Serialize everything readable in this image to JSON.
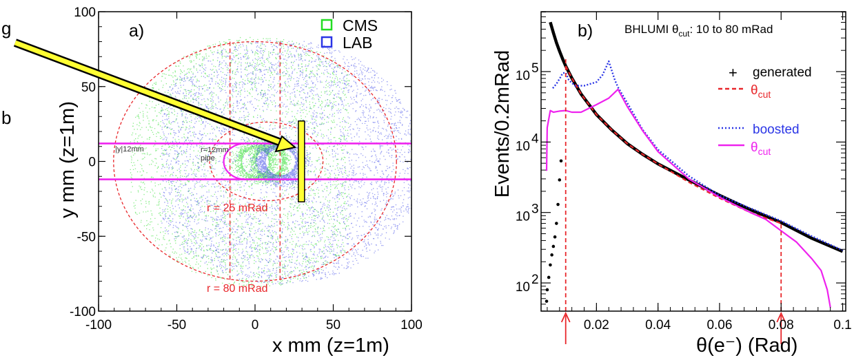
{
  "colors": {
    "cms": "#22dd22",
    "lab": "#2a35e6",
    "magenta": "#ee22ee",
    "red": "#e8262a",
    "arrow": "#ffff33",
    "black": "#000000"
  },
  "side_text": {
    "top": "g",
    "mid": "b"
  },
  "chart_data": [
    {
      "panel": "a)",
      "type": "scatter",
      "xlabel": "x mm (z=1m)",
      "ylabel": "y mm (z=1m)",
      "xlim": [
        -100,
        100
      ],
      "ylim": [
        -100,
        100
      ],
      "xticks": [
        -100,
        -50,
        0,
        50,
        100
      ],
      "yticks": [
        -100,
        -50,
        0,
        50,
        100
      ],
      "legend": [
        {
          "label": "CMS",
          "color": "#22dd22"
        },
        {
          "label": "LAB",
          "color": "#2a35e6"
        }
      ],
      "legend_position": "top-right",
      "annotations": {
        "band": "|y|12mm",
        "pipe_radius": "r=12mm",
        "pipe": "pipe",
        "inner_cut": "r = 25 mRad",
        "outer_cut": "r = 80 mRad"
      },
      "band_y": [
        -12,
        12
      ],
      "inner_circle_r": 25,
      "outer_circle_r": 80,
      "beam_offset_x": 16,
      "vertical_lines_x": [
        -16,
        16
      ],
      "detector_x": 29
    },
    {
      "panel": "b)",
      "type": "line",
      "title": "BHLUMI θ_cut: 10 to 80 mRad",
      "title_parts": {
        "pre": "BHLUMI θ",
        "sub": "cut",
        "post": ": 10 to 80 mRad"
      },
      "xlabel": "θ(e⁻) (Rad)",
      "ylabel": "Events/0.2mRad",
      "xlim": [
        0.002,
        0.101
      ],
      "ylim_log10": [
        1.6,
        5.85
      ],
      "log_y": true,
      "xticks": [
        0.02,
        0.04,
        0.06,
        0.08,
        0.1
      ],
      "xtick_labels": [
        "0.02",
        "0.04",
        "0.06",
        "0.08",
        "0.1"
      ],
      "ytick_exps": [
        2,
        3,
        4,
        5
      ],
      "ytick_base": "10",
      "legend": [
        {
          "label": "generated",
          "sym": "+",
          "color": "#000000"
        },
        {
          "label": "θ",
          "sub": "cut",
          "color": "#e8262a",
          "dash": "dashed"
        },
        {
          "label": "boosted",
          "color": "#2a35e6",
          "dash": "dotted"
        },
        {
          "label": "θ",
          "sub": "cut",
          "color": "#ee22ee",
          "dash": "solid"
        }
      ],
      "cut_lines_x": [
        0.01,
        0.08
      ],
      "series": [
        {
          "name": "generated",
          "color": "#000000",
          "x": [
            0.005,
            0.006,
            0.007,
            0.008,
            0.009,
            0.01,
            0.012,
            0.015,
            0.02,
            0.025,
            0.03,
            0.035,
            0.04,
            0.05,
            0.06,
            0.07,
            0.08,
            0.09,
            0.1
          ],
          "y": [
            502000,
            355000,
            257000,
            195000,
            151000,
            120000,
            81000,
            48000,
            24500,
            14800,
            9500,
            6700,
            4900,
            2900,
            1750,
            1100,
            720,
            430,
            280
          ]
        },
        {
          "name": "θ_cut (generated)",
          "color": "#e8262a",
          "x": [
            0.01,
            0.012,
            0.015,
            0.02,
            0.025,
            0.03,
            0.035,
            0.04,
            0.05,
            0.06,
            0.07,
            0.08
          ],
          "y": [
            120000,
            81000,
            48000,
            24500,
            14800,
            9500,
            6700,
            4900,
            2700,
            1600,
            1000,
            700
          ]
        },
        {
          "name": "boosted",
          "color": "#2a35e6",
          "x": [
            0.0058,
            0.007,
            0.008,
            0.009,
            0.01,
            0.011,
            0.013,
            0.016,
            0.02,
            0.022,
            0.024,
            0.026,
            0.027,
            0.03,
            0.035,
            0.04,
            0.05,
            0.06,
            0.07,
            0.08,
            0.09,
            0.1
          ],
          "y": [
            58000,
            67000,
            79000,
            95000,
            97000,
            76000,
            63000,
            63000,
            71000,
            90000,
            140000,
            75000,
            60000,
            36000,
            15000,
            7800,
            3300,
            1750,
            1150,
            760,
            460,
            290
          ]
        },
        {
          "name": "θ_cut (boosted)",
          "color": "#ee22ee",
          "x": [
            0.0038,
            0.004,
            0.005,
            0.006,
            0.007,
            0.008,
            0.01,
            0.012,
            0.015,
            0.02,
            0.024,
            0.027,
            0.03,
            0.035,
            0.04,
            0.05,
            0.06,
            0.07,
            0.075,
            0.08,
            0.085,
            0.09,
            0.093,
            0.095,
            0.096
          ],
          "y": [
            3900,
            16000,
            28000,
            26500,
            27000,
            27500,
            28000,
            26500,
            26500,
            34000,
            42000,
            56000,
            32000,
            14500,
            7300,
            3000,
            1650,
            1000,
            800,
            550,
            380,
            220,
            150,
            80,
            45
          ]
        },
        {
          "name": "generated rising edge",
          "color": "#000000",
          "x": [
            0.0038,
            0.004,
            0.0045,
            0.005,
            0.0055,
            0.006,
            0.0065,
            0.007,
            0.0075,
            0.008,
            0.0085
          ],
          "y": [
            55,
            80,
            120,
            180,
            250,
            330,
            450,
            700,
            1300,
            2900,
            5400
          ]
        }
      ]
    }
  ]
}
